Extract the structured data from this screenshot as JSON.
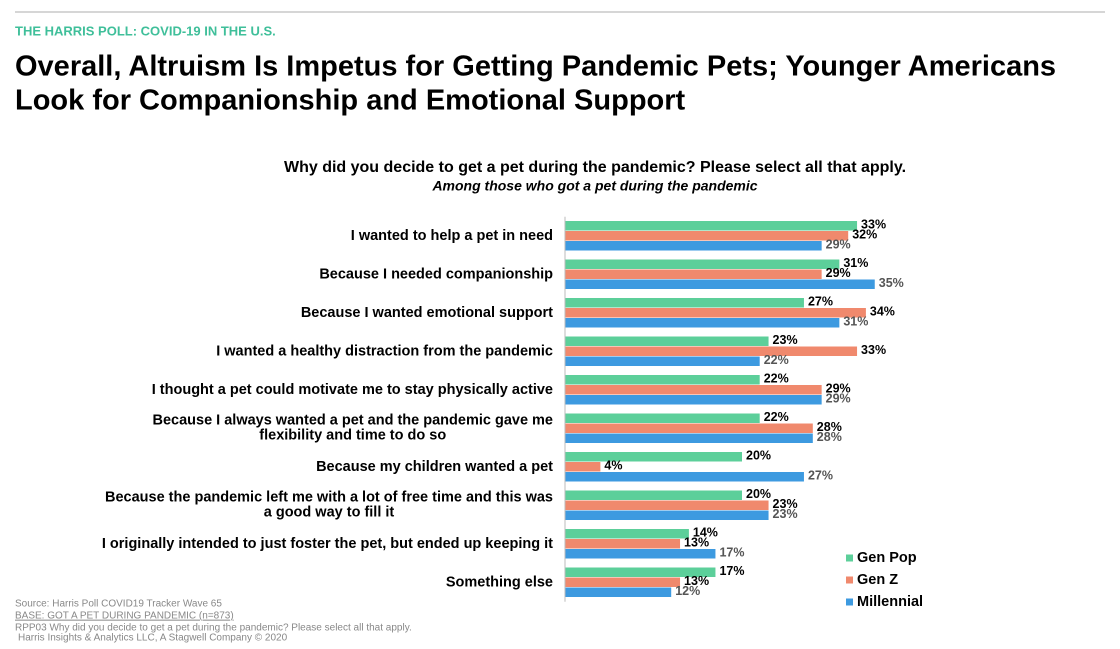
{
  "header": {
    "kicker": "THE HARRIS POLL: COVID-19 IN THE U.S.",
    "title_lines": [
      "Overall, Altruism Is Impetus for Getting Pandemic Pets; Younger Americans",
      "Look for Companionship and Emotional Support"
    ]
  },
  "chart_data": {
    "type": "hbar",
    "title": "Why did you decide to get a pet during the pandemic? Please select all that apply.",
    "subtitle": "Among those who got a pet during the pandemic",
    "categories": [
      "I wanted to help a pet in need",
      "Because I needed companionship",
      "Because I wanted emotional support",
      "I wanted a healthy distraction from the pandemic",
      "I thought a pet could motivate me to stay physically active",
      [
        "Because I always wanted a pet and the pandemic gave me",
        "flexibility and time to do so"
      ],
      "Because my children wanted a pet",
      [
        "Because the pandemic left me with a lot of free time and this was",
        "a good way to fill it"
      ],
      "I originally intended to just foster the pet, but ended up keeping it",
      "Something else"
    ],
    "xlim": [
      0,
      40
    ],
    "series": [
      {
        "name": "Gen Pop",
        "color": "#5ccf9a",
        "label_color": "#000000",
        "values": [
          33,
          31,
          27,
          23,
          22,
          22,
          20,
          20,
          14,
          17
        ],
        "value_labels": [
          "33%",
          "31%",
          "27%",
          "23%",
          "22%",
          "22%",
          "20%",
          "20%",
          "14%",
          "17%"
        ]
      },
      {
        "name": "Gen Z",
        "color": "#f0896d",
        "label_color": "#000000",
        "values": [
          32,
          29,
          34,
          33,
          29,
          28,
          4,
          23,
          13,
          13
        ],
        "value_labels": [
          "32%",
          "29%",
          "34%",
          "33%",
          "29%",
          "28%",
          "4%",
          "23%",
          "13%",
          "13%"
        ]
      },
      {
        "name": "Millennial",
        "color": "#3d9ae0",
        "label_color": "#555555",
        "values": [
          29,
          35,
          31,
          22,
          29,
          28,
          27,
          23,
          17,
          12
        ],
        "value_labels": [
          "29%",
          "35%",
          "31%",
          "22%",
          "29%",
          "28%",
          "27%",
          "23%",
          "17%",
          "12%"
        ]
      }
    ],
    "legend": "bottom-right"
  },
  "footer": {
    "source": "Source: Harris Poll COVID19 Tracker Wave 65",
    "base": "BASE: GOT A PET DURING PANDEMIC (n=873)",
    "question": "RPP03 Why did you decide to get a pet during the pandemic? Please select all that apply.",
    "company": "Harris Insights & Analytics LLC, A Stagwell Company © 2020"
  }
}
